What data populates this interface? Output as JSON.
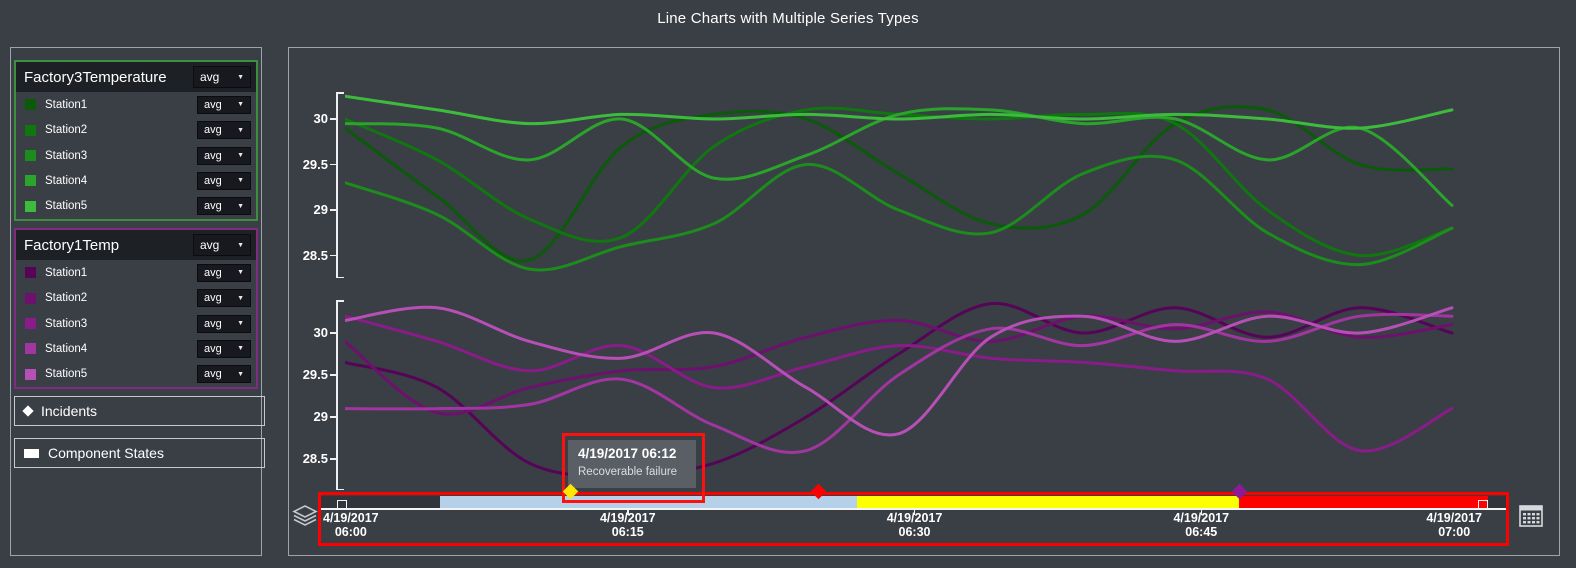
{
  "title": "Line Charts with Multiple Series Types",
  "sidebar": {
    "groups": [
      {
        "title": "Factory3Temperature",
        "agg": "avg",
        "border_color": "#3E8E41",
        "items": [
          {
            "label": "Station1",
            "color": "#0A5A0A",
            "agg": "avg"
          },
          {
            "label": "Station2",
            "color": "#107710",
            "agg": "avg"
          },
          {
            "label": "Station3",
            "color": "#1C8C1C",
            "agg": "avg"
          },
          {
            "label": "Station4",
            "color": "#2AA42A",
            "agg": "avg"
          },
          {
            "label": "Station5",
            "color": "#3DBB3D",
            "agg": "avg"
          }
        ]
      },
      {
        "title": "Factory1Temp",
        "agg": "avg",
        "border_color": "#7E2D82",
        "items": [
          {
            "label": "Station1",
            "color": "#560458",
            "agg": "avg"
          },
          {
            "label": "Station2",
            "color": "#6E106E",
            "agg": "avg"
          },
          {
            "label": "Station3",
            "color": "#8A1C8A",
            "agg": "avg"
          },
          {
            "label": "Station4",
            "color": "#A136A1",
            "agg": "avg"
          },
          {
            "label": "Station5",
            "color": "#B650B6",
            "agg": "avg"
          }
        ]
      }
    ],
    "toggles": [
      {
        "label": "Incidents",
        "icon": "diamond-icon"
      },
      {
        "label": "Component States",
        "icon": "rect-icon"
      }
    ]
  },
  "chart_data": [
    {
      "type": "line",
      "title": "Factory3Temperature (avg by station)",
      "ylabel": "",
      "yticks": [
        30,
        29.5,
        29,
        28.5
      ],
      "ylim": [
        28.25,
        30.35
      ],
      "x_minutes": [
        0,
        5,
        10,
        15,
        20,
        25,
        30,
        35,
        40,
        45,
        50,
        55,
        60
      ],
      "x_start": "4/19/2017 06:00",
      "x_end": "4/19/2017 07:00",
      "series": [
        {
          "name": "Station1",
          "color": "#0A5A0A",
          "values": [
            29.9,
            29.15,
            28.45,
            29.7,
            30.05,
            30.0,
            29.4,
            28.85,
            28.95,
            29.95,
            30.1,
            29.5,
            29.45
          ]
        },
        {
          "name": "Station2",
          "color": "#107710",
          "values": [
            30.0,
            29.55,
            28.9,
            28.7,
            29.7,
            30.1,
            30.05,
            30.0,
            30.05,
            29.95,
            29.0,
            28.5,
            28.8
          ]
        },
        {
          "name": "Station3",
          "color": "#1C8C1C",
          "values": [
            29.3,
            28.95,
            28.35,
            28.6,
            28.85,
            29.5,
            29.0,
            28.75,
            29.4,
            29.55,
            28.75,
            28.4,
            28.8
          ]
        },
        {
          "name": "Station4",
          "color": "#2AA42A",
          "values": [
            29.95,
            29.9,
            29.55,
            30.0,
            29.35,
            29.6,
            30.05,
            30.1,
            29.95,
            30.0,
            29.55,
            29.9,
            29.05
          ]
        },
        {
          "name": "Station5",
          "color": "#3DBB3D",
          "values": [
            30.25,
            30.1,
            29.95,
            30.05,
            30.0,
            30.05,
            30.0,
            30.05,
            30.0,
            30.05,
            30.0,
            29.9,
            30.1
          ]
        }
      ]
    },
    {
      "type": "line",
      "title": "Factory1Temp (avg by station)",
      "ylabel": "",
      "yticks": [
        30,
        29.5,
        29,
        28.5
      ],
      "ylim": [
        28.2,
        30.4
      ],
      "x_minutes": [
        0,
        5,
        10,
        15,
        20,
        25,
        30,
        35,
        40,
        45,
        50,
        55,
        60
      ],
      "x_start": "4/19/2017 06:00",
      "x_end": "4/19/2017 07:00",
      "series": [
        {
          "name": "Station1",
          "color": "#560458",
          "values": [
            29.65,
            29.35,
            28.45,
            28.3,
            28.45,
            29.0,
            29.75,
            30.35,
            30.0,
            30.3,
            29.95,
            30.3,
            30.0
          ]
        },
        {
          "name": "Station2",
          "color": "#6E106E",
          "values": [
            29.9,
            29.05,
            29.35,
            29.55,
            29.6,
            29.95,
            30.15,
            29.9,
            30.2,
            30.05,
            30.25,
            29.95,
            30.1
          ]
        },
        {
          "name": "Station3",
          "color": "#8A1C8A",
          "values": [
            30.2,
            29.9,
            29.55,
            29.85,
            29.35,
            29.6,
            29.85,
            29.7,
            29.65,
            29.55,
            29.45,
            28.6,
            29.1
          ]
        },
        {
          "name": "Station4",
          "color": "#A136A1",
          "values": [
            29.1,
            29.1,
            29.15,
            29.45,
            28.9,
            28.6,
            29.5,
            30.05,
            29.85,
            30.1,
            29.9,
            30.2,
            30.2
          ]
        },
        {
          "name": "Station5",
          "color": "#B650B6",
          "values": [
            30.15,
            30.3,
            29.9,
            29.7,
            30.0,
            29.35,
            28.8,
            29.95,
            30.2,
            29.9,
            30.2,
            30.0,
            30.3
          ]
        }
      ]
    }
  ],
  "timeline": {
    "labels": [
      {
        "date": "4/19/2017",
        "time": "06:00",
        "minute": 0,
        "align": "left"
      },
      {
        "date": "4/19/2017",
        "time": "06:15",
        "minute": 15,
        "align": "center"
      },
      {
        "date": "4/19/2017",
        "time": "06:30",
        "minute": 30,
        "align": "center"
      },
      {
        "date": "4/19/2017",
        "time": "06:45",
        "minute": 45,
        "align": "center"
      },
      {
        "date": "4/19/2017",
        "time": "07:00",
        "minute": 60,
        "align": "right"
      }
    ],
    "segments": [
      {
        "state": "none",
        "color": "#31353B",
        "from_min": -1.1,
        "to_min": 5.2
      },
      {
        "state": "normal",
        "color": "#B5D0E9",
        "from_min": 5.2,
        "to_min": 27
      },
      {
        "state": "warning",
        "color": "#FCFF00",
        "from_min": 27,
        "to_min": 47
      },
      {
        "state": "error",
        "color": "#FD0000",
        "from_min": 47,
        "to_min": 60
      },
      {
        "state": "none",
        "color": "#31353B",
        "from_min": 60,
        "to_min": 61.1
      }
    ],
    "markers": [
      {
        "minute": 12,
        "color": "#FFE600",
        "kind": "selected-incident"
      },
      {
        "minute": 25,
        "color": "#FD0000",
        "kind": "incident"
      },
      {
        "minute": 47,
        "color": "#8E1A96",
        "kind": "incident"
      }
    ]
  },
  "tooltip": {
    "title": "4/19/2017 06:12",
    "text": "Recoverable failure"
  },
  "icons": [
    "layers-icon",
    "calendar-icon",
    "diamond-icon",
    "rect-icon",
    "dropdown-caret-icon"
  ],
  "ui_colors": {
    "background": "#3A3E45",
    "panel_border": "#9EA3AA",
    "selection_red": "#FD0000",
    "timeline_blue": "#B5D0E9",
    "timeline_yellow": "#FCFF00",
    "timeline_red": "#FD0000",
    "tooltip_bg": "#5A5F66"
  }
}
